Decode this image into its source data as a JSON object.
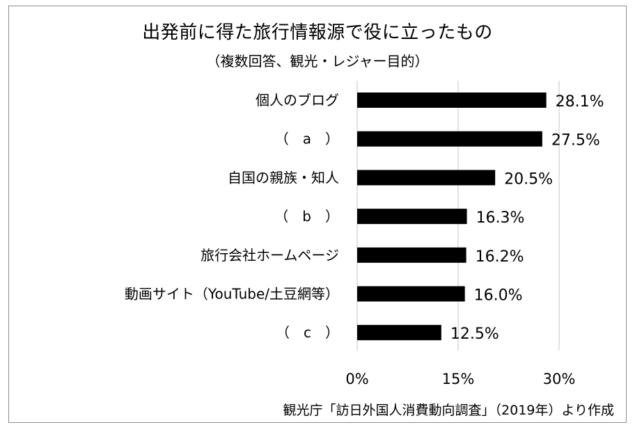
{
  "chart_data": {
    "type": "bar",
    "orientation": "horizontal",
    "title": "出発前に得た旅行情報源で役に立ったもの",
    "subtitle": "（複数回答、観光・レジャー目的）",
    "categories": [
      "個人のブログ",
      "（　a　）",
      "自国の親族・知人",
      "（　b　）",
      "旅行会社ホームページ",
      "動画サイト（YouTube/土豆網等）",
      "（　c　）"
    ],
    "values": [
      28.1,
      27.5,
      20.5,
      16.3,
      16.2,
      16.0,
      12.5
    ],
    "value_labels": [
      "28.1%",
      "27.5%",
      "20.5%",
      "16.3%",
      "16.2%",
      "16.0%",
      "12.5%"
    ],
    "xlim": [
      0,
      30
    ],
    "xticks": [
      0,
      15,
      30
    ],
    "xtick_labels": [
      "0%",
      "15%",
      "30%"
    ],
    "grid": true,
    "bar_color": "#000000",
    "grid_color": "#d9d9d9",
    "source": "観光庁「訪日外国人消費動向調査」（2019年）より作成"
  }
}
